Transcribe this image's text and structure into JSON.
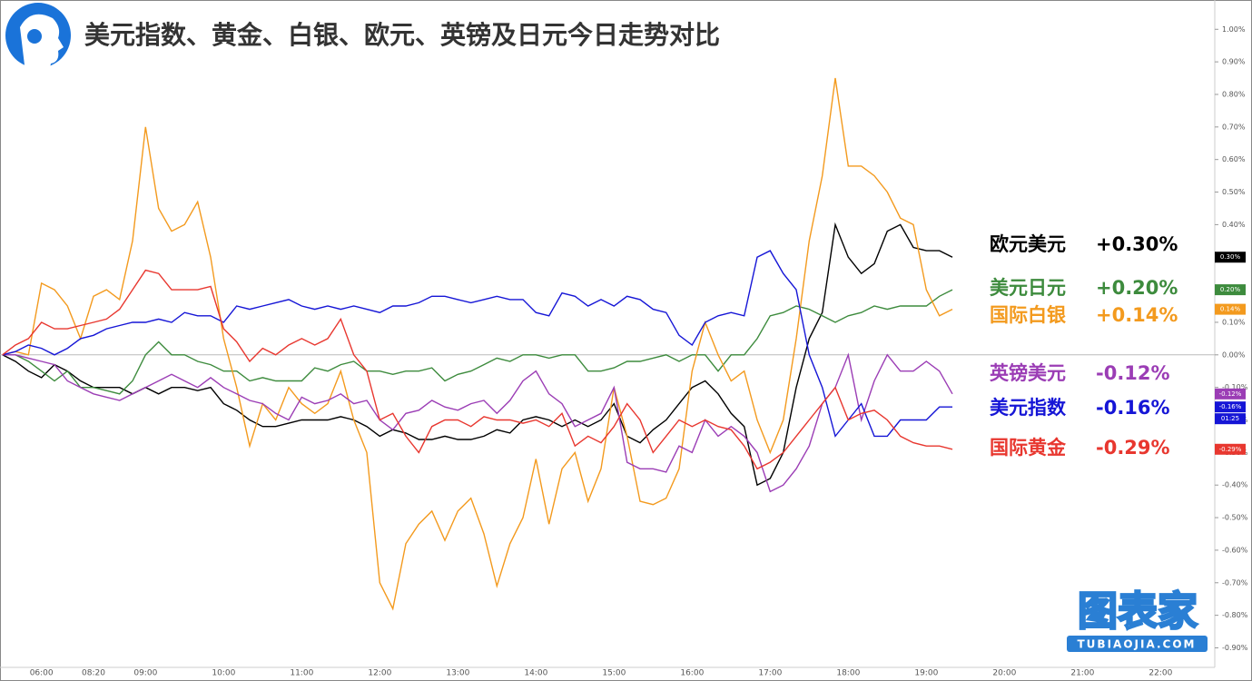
{
  "chart_data": {
    "type": "line",
    "title": "美元指数、黄金、白银、欧元、英镑及日元今日走势对比",
    "categories": [
      null,
      null,
      null,
      "06:00",
      null,
      null,
      null,
      "08:20",
      null,
      null,
      null,
      "09:00",
      null,
      null,
      null,
      null,
      null,
      "10:00",
      null,
      null,
      null,
      null,
      null,
      "11:00",
      null,
      null,
      null,
      null,
      null,
      "12:00",
      null,
      null,
      null,
      null,
      null,
      "13:00",
      null,
      null,
      null,
      null,
      null,
      "14:00",
      null,
      null,
      null,
      null,
      null,
      "15:00",
      null,
      null,
      null,
      null,
      null,
      "16:00",
      null,
      null,
      null,
      null,
      null,
      "17:00",
      null,
      null,
      null,
      null,
      null,
      "18:00",
      null,
      null,
      null,
      null,
      null,
      "19:00",
      null,
      null,
      null,
      null,
      null,
      "20:00",
      null,
      null,
      null,
      null,
      null,
      "21:00",
      null,
      null,
      null,
      null,
      null,
      "22:00",
      null
    ],
    "series": [
      {
        "name": "欧元美元",
        "color": "#000000",
        "legend_label": "+0.30%",
        "axis_label": "0.30%",
        "values": [
          0,
          -0.02,
          -0.05,
          -0.07,
          -0.03,
          -0.05,
          -0.08,
          -0.1,
          -0.1,
          -0.1,
          -0.12,
          -0.1,
          -0.12,
          -0.1,
          -0.1,
          -0.11,
          -0.1,
          -0.15,
          -0.17,
          -0.2,
          -0.22,
          -0.22,
          -0.21,
          -0.2,
          -0.2,
          -0.2,
          -0.19,
          -0.2,
          -0.22,
          -0.25,
          -0.23,
          -0.24,
          -0.26,
          -0.26,
          -0.25,
          -0.26,
          -0.26,
          -0.25,
          -0.23,
          -0.24,
          -0.2,
          -0.19,
          -0.2,
          -0.22,
          -0.2,
          -0.22,
          -0.2,
          -0.15,
          -0.25,
          -0.27,
          -0.23,
          -0.2,
          -0.15,
          -0.1,
          -0.08,
          -0.12,
          -0.18,
          -0.22,
          -0.4,
          -0.38,
          -0.3,
          -0.1,
          0.05,
          0.13,
          0.4,
          0.3,
          0.25,
          0.28,
          0.38,
          0.4,
          0.33,
          0.32,
          0.32,
          0.3,
          null,
          null,
          null,
          null,
          null,
          null,
          null,
          null,
          null,
          null,
          null,
          null,
          null,
          null,
          null,
          null,
          null
        ]
      },
      {
        "name": "美元日元",
        "color": "#3d8b3d",
        "legend_label": "+0.20%",
        "axis_label": "0.20%",
        "values": [
          0,
          0,
          -0.02,
          -0.05,
          -0.08,
          -0.05,
          -0.1,
          -0.1,
          -0.11,
          -0.12,
          -0.08,
          0,
          0.04,
          0,
          0,
          -0.02,
          -0.03,
          -0.05,
          -0.05,
          -0.08,
          -0.07,
          -0.08,
          -0.08,
          -0.08,
          -0.04,
          -0.05,
          -0.03,
          -0.02,
          -0.05,
          -0.05,
          -0.06,
          -0.05,
          -0.05,
          -0.04,
          -0.08,
          -0.06,
          -0.05,
          -0.03,
          -0.01,
          -0.02,
          0,
          0,
          -0.01,
          0,
          0,
          -0.05,
          -0.05,
          -0.04,
          -0.02,
          -0.02,
          -0.01,
          0,
          -0.02,
          0,
          0,
          -0.05,
          0,
          0,
          0.05,
          0.12,
          0.13,
          0.15,
          0.14,
          0.12,
          0.1,
          0.12,
          0.13,
          0.15,
          0.14,
          0.15,
          0.15,
          0.15,
          0.18,
          0.2,
          null,
          null,
          null,
          null,
          null,
          null,
          null,
          null,
          null,
          null,
          null,
          null,
          null,
          null,
          null,
          null,
          null
        ]
      },
      {
        "name": "国际白银",
        "color": "#f39a1e",
        "legend_label": "+0.14%",
        "axis_label": "0.14%",
        "values": [
          0,
          0.01,
          0,
          0.22,
          0.2,
          0.15,
          0.05,
          0.18,
          0.2,
          0.17,
          0.35,
          0.7,
          0.45,
          0.38,
          0.4,
          0.47,
          0.3,
          0.05,
          -0.1,
          -0.28,
          -0.15,
          -0.2,
          -0.1,
          -0.15,
          -0.18,
          -0.15,
          -0.05,
          -0.2,
          -0.3,
          -0.7,
          -0.78,
          -0.58,
          -0.52,
          -0.48,
          -0.57,
          -0.48,
          -0.44,
          -0.55,
          -0.71,
          -0.58,
          -0.5,
          -0.32,
          -0.52,
          -0.35,
          -0.3,
          -0.45,
          -0.35,
          -0.1,
          -0.25,
          -0.45,
          -0.46,
          -0.44,
          -0.35,
          -0.05,
          0.1,
          0,
          -0.08,
          -0.05,
          -0.2,
          -0.3,
          -0.2,
          0.05,
          0.35,
          0.55,
          0.85,
          0.58,
          0.58,
          0.55,
          0.5,
          0.42,
          0.4,
          0.2,
          0.12,
          0.14,
          null,
          null,
          null,
          null,
          null,
          null,
          null,
          null,
          null,
          null,
          null,
          null,
          null,
          null,
          null,
          null,
          null
        ]
      },
      {
        "name": "英镑美元",
        "color": "#9b3db5",
        "legend_label": "-0.12%",
        "axis_label": "-0.12%",
        "values": [
          0,
          0,
          -0.01,
          -0.02,
          -0.03,
          -0.08,
          -0.1,
          -0.12,
          -0.13,
          -0.14,
          -0.12,
          -0.1,
          -0.08,
          -0.06,
          -0.08,
          -0.1,
          -0.07,
          -0.1,
          -0.12,
          -0.14,
          -0.15,
          -0.18,
          -0.2,
          -0.13,
          -0.15,
          -0.14,
          -0.12,
          -0.15,
          -0.14,
          -0.2,
          -0.23,
          -0.18,
          -0.17,
          -0.14,
          -0.16,
          -0.17,
          -0.15,
          -0.14,
          -0.18,
          -0.14,
          -0.08,
          -0.05,
          -0.12,
          -0.15,
          -0.22,
          -0.2,
          -0.18,
          -0.1,
          -0.33,
          -0.35,
          -0.35,
          -0.36,
          -0.28,
          -0.3,
          -0.2,
          -0.25,
          -0.22,
          -0.25,
          -0.3,
          -0.42,
          -0.4,
          -0.35,
          -0.28,
          -0.15,
          -0.1,
          0,
          -0.2,
          -0.08,
          0,
          -0.05,
          -0.05,
          -0.02,
          -0.05,
          -0.12,
          null,
          null,
          null,
          null,
          null,
          null,
          null,
          null,
          null,
          null,
          null,
          null,
          null,
          null,
          null,
          null,
          null
        ]
      },
      {
        "name": "美元指数",
        "color": "#1515d6",
        "legend_label": "-0.16%",
        "axis_label": "-0.16%",
        "countdown": "01:25",
        "values": [
          0,
          0.01,
          0.03,
          0.02,
          0,
          0.02,
          0.05,
          0.06,
          0.08,
          0.09,
          0.1,
          0.1,
          0.11,
          0.1,
          0.13,
          0.12,
          0.12,
          0.1,
          0.15,
          0.14,
          0.15,
          0.16,
          0.17,
          0.15,
          0.14,
          0.15,
          0.14,
          0.15,
          0.14,
          0.13,
          0.15,
          0.15,
          0.16,
          0.18,
          0.18,
          0.17,
          0.16,
          0.17,
          0.18,
          0.17,
          0.17,
          0.13,
          0.12,
          0.19,
          0.18,
          0.15,
          0.17,
          0.15,
          0.18,
          0.17,
          0.14,
          0.13,
          0.06,
          0.03,
          0.1,
          0.12,
          0.13,
          0.12,
          0.3,
          0.32,
          0.25,
          0.2,
          0,
          -0.1,
          -0.25,
          -0.2,
          -0.15,
          -0.25,
          -0.25,
          -0.2,
          -0.2,
          -0.2,
          -0.16,
          -0.16,
          null,
          null,
          null,
          null,
          null,
          null,
          null,
          null,
          null,
          null,
          null,
          null,
          null,
          null,
          null,
          null,
          null
        ]
      },
      {
        "name": "国际黄金",
        "color": "#e8372f",
        "legend_label": "-0.29%",
        "axis_label": "-0.29%",
        "values": [
          0,
          0.03,
          0.05,
          0.1,
          0.08,
          0.08,
          0.09,
          0.1,
          0.11,
          0.14,
          0.2,
          0.26,
          0.25,
          0.2,
          0.2,
          0.2,
          0.21,
          0.08,
          0.04,
          -0.02,
          0.02,
          0,
          0.03,
          0.05,
          0.03,
          0.05,
          0.11,
          0,
          -0.05,
          -0.2,
          -0.18,
          -0.25,
          -0.3,
          -0.22,
          -0.2,
          -0.2,
          -0.22,
          -0.19,
          -0.2,
          -0.2,
          -0.21,
          -0.2,
          -0.22,
          -0.18,
          -0.28,
          -0.25,
          -0.27,
          -0.22,
          -0.15,
          -0.2,
          -0.3,
          -0.25,
          -0.2,
          -0.22,
          -0.2,
          -0.22,
          -0.23,
          -0.28,
          -0.35,
          -0.33,
          -0.3,
          -0.25,
          -0.2,
          -0.15,
          -0.1,
          -0.2,
          -0.18,
          -0.17,
          -0.2,
          -0.25,
          -0.27,
          -0.28,
          -0.28,
          -0.29,
          null,
          null,
          null,
          null,
          null,
          null,
          null,
          null,
          null,
          null,
          null,
          null,
          null,
          null,
          null,
          null,
          null
        ]
      }
    ],
    "ylim": [
      -0.96,
      1.09
    ],
    "yticks": [
      {
        "value": 1.0,
        "label": "1.00%"
      },
      {
        "value": 0.9,
        "label": "0.90%"
      },
      {
        "value": 0.8,
        "label": "0.80%"
      },
      {
        "value": 0.7,
        "label": "0.70%"
      },
      {
        "value": 0.6,
        "label": "0.60%"
      },
      {
        "value": 0.5,
        "label": "0.50%"
      },
      {
        "value": 0.4,
        "label": "0.40%"
      },
      {
        "value": 0.3,
        "label": "0.30%"
      },
      {
        "value": 0.2,
        "label": "0.20%"
      },
      {
        "value": 0.1,
        "label": "0.10%"
      },
      {
        "value": 0,
        "label": "0.00%"
      },
      {
        "value": -0.1,
        "label": "-0.10%"
      },
      {
        "value": -0.2,
        "label": "-0.20%"
      },
      {
        "value": -0.3,
        "label": "-0.30%"
      },
      {
        "value": -0.4,
        "label": "-0.40%"
      },
      {
        "value": -0.5,
        "label": "-0.50%"
      },
      {
        "value": -0.6,
        "label": "-0.60%"
      },
      {
        "value": -0.7,
        "label": "-0.70%"
      },
      {
        "value": -0.8,
        "label": "-0.80%"
      },
      {
        "value": -0.9,
        "label": "-0.90%"
      }
    ]
  },
  "watermark": {
    "title": "图表家",
    "url": "TUBIAOJIA.COM"
  }
}
